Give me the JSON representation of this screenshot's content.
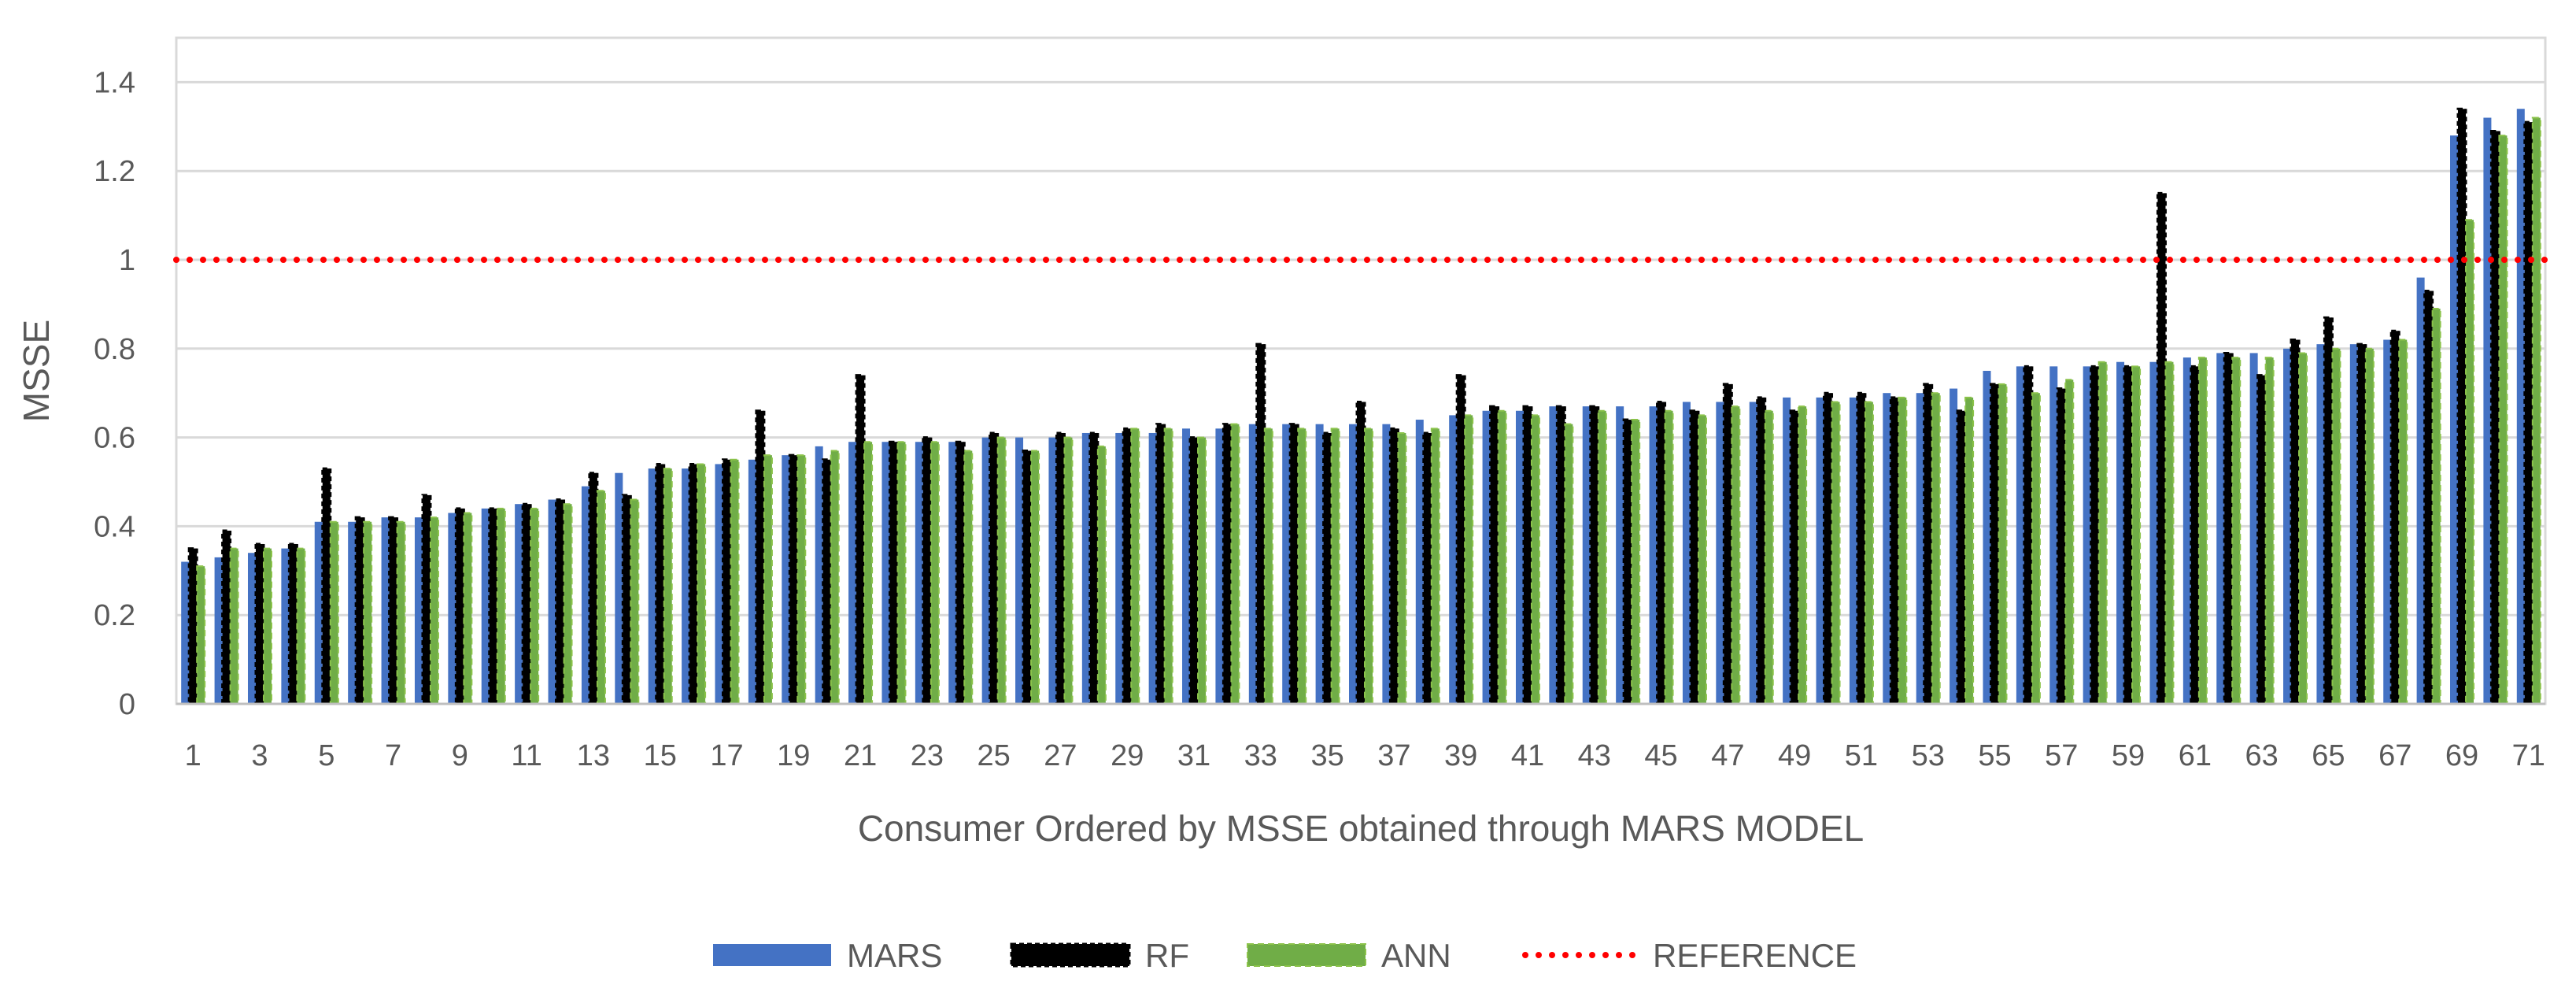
{
  "chart_data": {
    "type": "bar",
    "title": "",
    "xlabel": "Consumer Ordered by MSSE obtained through MARS MODEL",
    "ylabel": "MSSE",
    "ylim": [
      0,
      1.5
    ],
    "yticks": [
      "0",
      "0.2",
      "0.4",
      "0.6",
      "0.8",
      "1",
      "1.2",
      "1.4"
    ],
    "grid": true,
    "legend_position": "bottom",
    "categories": [
      "1",
      "2",
      "3",
      "4",
      "5",
      "6",
      "7",
      "8",
      "9",
      "10",
      "11",
      "12",
      "13",
      "14",
      "15",
      "16",
      "17",
      "18",
      "19",
      "20",
      "21",
      "22",
      "23",
      "24",
      "25",
      "26",
      "27",
      "28",
      "29",
      "30",
      "31",
      "32",
      "33",
      "34",
      "35",
      "36",
      "37",
      "38",
      "39",
      "40",
      "41",
      "42",
      "43",
      "44",
      "45",
      "46",
      "47",
      "48",
      "49",
      "50",
      "51",
      "52",
      "53",
      "54",
      "55",
      "56",
      "57",
      "58",
      "59",
      "60",
      "61",
      "62",
      "63",
      "64",
      "65",
      "66",
      "67",
      "68",
      "69",
      "70",
      "71"
    ],
    "xtick_labels_shown": [
      "1",
      "3",
      "5",
      "7",
      "9",
      "11",
      "13",
      "15",
      "17",
      "19",
      "21",
      "23",
      "25",
      "27",
      "29",
      "31",
      "33",
      "35",
      "37",
      "39",
      "41",
      "43",
      "45",
      "47",
      "49",
      "51",
      "53",
      "55",
      "57",
      "59",
      "61",
      "63",
      "65",
      "67",
      "69",
      "71"
    ],
    "series": [
      {
        "name": "MARS",
        "color": "#4472C4",
        "values": [
          0.32,
          0.33,
          0.34,
          0.35,
          0.41,
          0.41,
          0.42,
          0.42,
          0.43,
          0.44,
          0.45,
          0.46,
          0.49,
          0.52,
          0.53,
          0.53,
          0.54,
          0.55,
          0.56,
          0.58,
          0.59,
          0.59,
          0.59,
          0.59,
          0.6,
          0.6,
          0.6,
          0.61,
          0.61,
          0.61,
          0.62,
          0.62,
          0.63,
          0.63,
          0.63,
          0.63,
          0.63,
          0.64,
          0.65,
          0.66,
          0.66,
          0.67,
          0.67,
          0.67,
          0.67,
          0.68,
          0.68,
          0.68,
          0.69,
          0.69,
          0.69,
          0.7,
          0.7,
          0.71,
          0.75,
          0.76,
          0.76,
          0.76,
          0.77,
          0.77,
          0.78,
          0.79,
          0.79,
          0.8,
          0.81,
          0.81,
          0.82,
          0.96,
          1.28,
          1.32,
          1.34
        ]
      },
      {
        "name": "RF",
        "color": "#000000",
        "values": [
          0.35,
          0.39,
          0.36,
          0.36,
          0.53,
          0.42,
          0.42,
          0.47,
          0.44,
          0.44,
          0.45,
          0.46,
          0.52,
          0.47,
          0.54,
          0.54,
          0.55,
          0.66,
          0.56,
          0.55,
          0.74,
          0.59,
          0.6,
          0.59,
          0.61,
          0.57,
          0.61,
          0.61,
          0.62,
          0.63,
          0.6,
          0.63,
          0.81,
          0.63,
          0.61,
          0.68,
          0.62,
          0.61,
          0.74,
          0.67,
          0.67,
          0.67,
          0.67,
          0.64,
          0.68,
          0.66,
          0.72,
          0.69,
          0.66,
          0.7,
          0.7,
          0.69,
          0.72,
          0.66,
          0.72,
          0.76,
          0.71,
          0.76,
          0.76,
          1.15,
          0.76,
          0.79,
          0.74,
          0.82,
          0.87,
          0.81,
          0.84,
          0.93,
          1.34,
          1.29,
          1.31
        ]
      },
      {
        "name": "ANN",
        "color": "#70AD47",
        "values": [
          0.31,
          0.35,
          0.35,
          0.35,
          0.41,
          0.41,
          0.41,
          0.42,
          0.43,
          0.44,
          0.44,
          0.45,
          0.48,
          0.46,
          0.53,
          0.54,
          0.55,
          0.56,
          0.56,
          0.57,
          0.59,
          0.59,
          0.59,
          0.57,
          0.6,
          0.57,
          0.6,
          0.58,
          0.62,
          0.62,
          0.6,
          0.63,
          0.62,
          0.62,
          0.62,
          0.62,
          0.61,
          0.62,
          0.65,
          0.66,
          0.65,
          0.63,
          0.66,
          0.64,
          0.66,
          0.65,
          0.67,
          0.66,
          0.67,
          0.68,
          0.68,
          0.69,
          0.7,
          0.69,
          0.72,
          0.7,
          0.73,
          0.77,
          0.76,
          0.77,
          0.78,
          0.78,
          0.78,
          0.79,
          0.8,
          0.8,
          0.82,
          0.89,
          1.09,
          1.28,
          1.32
        ]
      }
    ],
    "reference": {
      "name": "REFERENCE",
      "value": 1,
      "color": "#FF0000",
      "style": "dotted"
    }
  }
}
